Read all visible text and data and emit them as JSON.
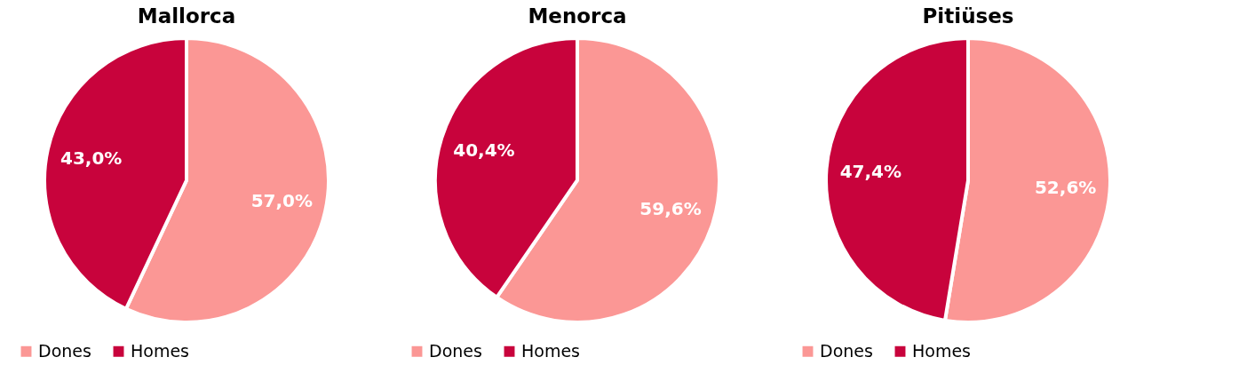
{
  "chart_data": [
    {
      "type": "pie",
      "title": "Mallorca",
      "categories": [
        "Dones",
        "Homes"
      ],
      "values": [
        57.0,
        43.0
      ],
      "colors": [
        "#fb9795",
        "#c8033c"
      ],
      "value_labels": [
        "57,0%",
        "43,0%"
      ],
      "legend": "bottom"
    },
    {
      "type": "pie",
      "title": "Menorca",
      "categories": [
        "Dones",
        "Homes"
      ],
      "values": [
        59.6,
        40.4
      ],
      "colors": [
        "#fb9795",
        "#c8033c"
      ],
      "value_labels": [
        "59,6%",
        "40,4%"
      ],
      "legend": "bottom"
    },
    {
      "type": "pie",
      "title": "Pitiüses",
      "categories": [
        "Dones",
        "Homes"
      ],
      "values": [
        52.6,
        47.4
      ],
      "colors": [
        "#fb9795",
        "#c8033c"
      ],
      "value_labels": [
        "52,6%",
        "47,4%"
      ],
      "legend": "bottom"
    }
  ]
}
